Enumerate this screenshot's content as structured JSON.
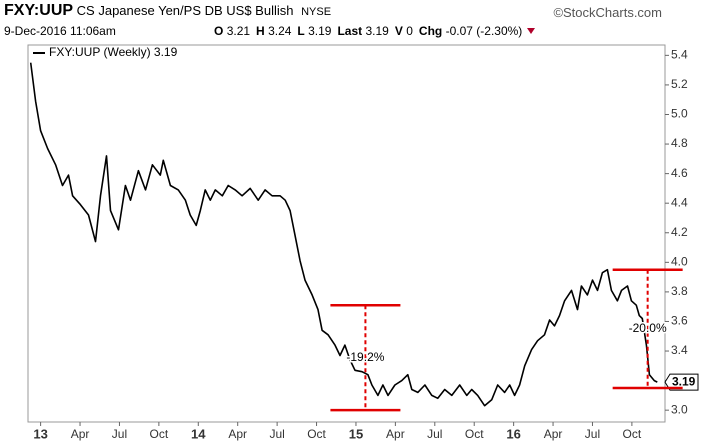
{
  "header": {
    "symbol": "FXY:UUP",
    "name": "CS Japanese Yen/PS DB US$ Bullish",
    "exchange": "NYSE",
    "credit": "©StockCharts.com",
    "date": "9-Dec-2016 11:06am",
    "quote": [
      {
        "label": "O",
        "value": 3.21
      },
      {
        "label": "H",
        "value": 3.24
      },
      {
        "label": "L",
        "value": 3.19
      },
      {
        "label": "Last",
        "value": 3.19
      },
      {
        "label": "V",
        "value": 0
      },
      {
        "label": "Chg",
        "value": -0.07
      }
    ],
    "change_percent": "(-2.30%)"
  },
  "chart_data": {
    "type": "line",
    "x": [
      2012.937,
      2012.968,
      2013.0,
      2013.044,
      2013.095,
      2013.139,
      2013.177,
      2013.203,
      2013.253,
      2013.304,
      2013.348,
      2013.38,
      2013.418,
      2013.443,
      2013.494,
      2013.538,
      2013.57,
      2013.62,
      2013.665,
      2013.709,
      2013.759,
      2013.778,
      2013.823,
      2013.873,
      2013.918,
      2013.949,
      2013.987,
      2014.013,
      2014.044,
      2014.076,
      2014.108,
      2014.152,
      2014.19,
      2014.234,
      2014.278,
      2014.329,
      2014.38,
      2014.424,
      2014.468,
      2014.519,
      2014.551,
      2014.582,
      2014.614,
      2014.646,
      2014.677,
      2014.722,
      2014.759,
      2014.785,
      2014.823,
      2014.867,
      2014.899,
      2014.93,
      2014.962,
      2014.994,
      2015.038,
      2015.076,
      2015.101,
      2015.139,
      2015.171,
      2015.203,
      2015.247,
      2015.291,
      2015.329,
      2015.354,
      2015.392,
      2015.437,
      2015.481,
      2015.519,
      2015.563,
      2015.608,
      2015.658,
      2015.703,
      2015.734,
      2015.772,
      2015.816,
      2015.861,
      2015.899,
      2015.943,
      2015.975,
      2016.006,
      2016.038,
      2016.07,
      2016.114,
      2016.152,
      2016.196,
      2016.228,
      2016.259,
      2016.291,
      2016.323,
      2016.367,
      2016.405,
      2016.43,
      2016.468,
      2016.5,
      2016.532,
      2016.563,
      2016.595,
      2016.62,
      2016.658,
      2016.684,
      2016.722,
      2016.747,
      2016.778,
      2016.797,
      2016.816,
      2016.842,
      2016.861,
      2016.892,
      2016.911
    ],
    "series": [
      {
        "name": "FXY:UUP (Weekly)",
        "color": "#000000",
        "values": [
          5.35,
          5.09,
          4.89,
          4.77,
          4.66,
          4.52,
          4.59,
          4.45,
          4.39,
          4.32,
          4.14,
          4.45,
          4.72,
          4.35,
          4.22,
          4.52,
          4.42,
          4.62,
          4.49,
          4.66,
          4.59,
          4.69,
          4.52,
          4.49,
          4.42,
          4.32,
          4.25,
          4.35,
          4.49,
          4.42,
          4.49,
          4.45,
          4.52,
          4.49,
          4.45,
          4.5,
          4.42,
          4.49,
          4.45,
          4.45,
          4.42,
          4.35,
          4.18,
          4.01,
          3.88,
          3.78,
          3.68,
          3.54,
          3.51,
          3.44,
          3.37,
          3.44,
          3.34,
          3.27,
          3.26,
          3.24,
          3.17,
          3.1,
          3.17,
          3.1,
          3.17,
          3.2,
          3.24,
          3.14,
          3.12,
          3.17,
          3.1,
          3.08,
          3.14,
          3.1,
          3.17,
          3.1,
          3.14,
          3.1,
          3.03,
          3.07,
          3.17,
          3.12,
          3.17,
          3.1,
          3.17,
          3.3,
          3.41,
          3.47,
          3.51,
          3.61,
          3.57,
          3.64,
          3.74,
          3.81,
          3.68,
          3.84,
          3.78,
          3.88,
          3.81,
          3.93,
          3.95,
          3.81,
          3.74,
          3.81,
          3.84,
          3.74,
          3.71,
          3.64,
          3.62,
          3.44,
          3.24,
          3.2,
          3.19
        ]
      }
    ],
    "xlim": [
      2012.92,
      2016.96
    ],
    "xticks": [
      {
        "value": 2013,
        "label": "13"
      },
      {
        "value": 2013.25,
        "label": "Apr"
      },
      {
        "value": 2013.5,
        "label": "Jul"
      },
      {
        "value": 2013.75,
        "label": "Oct"
      },
      {
        "value": 2014,
        "label": "14"
      },
      {
        "value": 2014.25,
        "label": "Apr"
      },
      {
        "value": 2014.5,
        "label": "Jul"
      },
      {
        "value": 2014.75,
        "label": "Oct"
      },
      {
        "value": 2015,
        "label": "15"
      },
      {
        "value": 2015.25,
        "label": "Apr"
      },
      {
        "value": 2015.5,
        "label": "Jul"
      },
      {
        "value": 2015.75,
        "label": "Oct"
      },
      {
        "value": 2016,
        "label": "16"
      },
      {
        "value": 2016.25,
        "label": "Apr"
      },
      {
        "value": 2016.5,
        "label": "Jul"
      },
      {
        "value": 2016.75,
        "label": "Oct"
      }
    ],
    "ylim": [
      2.92,
      5.47
    ],
    "yticks": [
      {
        "value": 3,
        "label": "3.0"
      },
      3.2,
      3.4,
      3.6,
      3.8,
      {
        "value": 4,
        "label": "4.0"
      },
      4.2,
      4.4,
      4.6,
      4.8,
      {
        "value": 5,
        "label": "5.0"
      },
      5.2,
      5.4
    ],
    "grid": false,
    "annotations": [
      {
        "text": "-19.2%",
        "x": 2015.06,
        "from": 3.71,
        "to": 3.0,
        "color": "#e00000"
      },
      {
        "text": "-20.0%",
        "x": 2016.85,
        "from": 3.95,
        "to": 3.15,
        "color": "#e00000"
      }
    ]
  }
}
